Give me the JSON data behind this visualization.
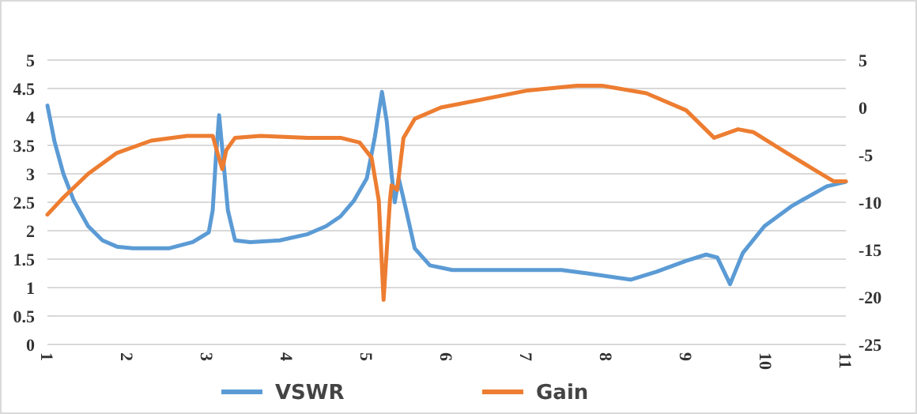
{
  "chart_data": {
    "type": "line",
    "xlim": [
      1,
      11
    ],
    "xticks": [
      1,
      2,
      3,
      4,
      5,
      6,
      7,
      8,
      9,
      10,
      11
    ],
    "ylim": [
      0,
      5
    ],
    "yticks": [
      0,
      0.5,
      1,
      1.5,
      2,
      2.5,
      3,
      3.5,
      4,
      4.5,
      5
    ],
    "y2lim": [
      -25,
      5
    ],
    "y2ticks": [
      -25,
      -20,
      -15,
      -10,
      -5,
      0,
      5
    ],
    "grid": "y",
    "legend": "bottom",
    "marker": "none",
    "line_style": "solid",
    "series": [
      {
        "name": "VSWR",
        "color": "#5b9bd5",
        "x": [
          1,
          1.09,
          1.2,
          1.33,
          1.51,
          1.69,
          1.87,
          2.07,
          2.52,
          2.82,
          3.02,
          3.07,
          3.11,
          3.15,
          3.2,
          3.26,
          3.35,
          3.54,
          3.91,
          4.26,
          4.49,
          4.67,
          4.84,
          5,
          5.1,
          5.19,
          5.25,
          5.31,
          5.35,
          5.4,
          5.48,
          5.6,
          5.79,
          6.07,
          6.58,
          7.44,
          7.76,
          8.31,
          8.63,
          9,
          9.25,
          9.39,
          9.55,
          9.71,
          9.98,
          10.33,
          10.76,
          11
        ],
        "values": [
          4.2,
          3.56,
          3,
          2.53,
          2.08,
          1.83,
          1.72,
          1.69,
          1.69,
          1.8,
          1.97,
          2.36,
          3.28,
          4.03,
          3.28,
          2.36,
          1.83,
          1.8,
          1.83,
          1.94,
          2.08,
          2.25,
          2.53,
          2.92,
          3.64,
          4.44,
          3.92,
          3,
          2.5,
          2.92,
          2.44,
          1.69,
          1.39,
          1.31,
          1.31,
          1.31,
          1.25,
          1.14,
          1.28,
          1.47,
          1.58,
          1.53,
          1.06,
          1.61,
          2.08,
          2.44,
          2.78,
          2.86
        ]
      },
      {
        "name": "Gain",
        "color": "#ed7d31",
        "axis": "y2",
        "x": [
          1,
          1.2,
          1.51,
          1.87,
          2.3,
          2.75,
          3.07,
          3.13,
          3.19,
          3.24,
          3.35,
          3.67,
          4.26,
          4.67,
          4.91,
          5.06,
          5.15,
          5.21,
          5.29,
          5.31,
          5.38,
          5.46,
          5.6,
          5.93,
          6.42,
          7.02,
          7.63,
          7.94,
          8.5,
          9,
          9.35,
          9.65,
          9.84,
          10.26,
          10.63,
          10.85,
          11
        ],
        "values": [
          -11.3,
          -9.5,
          -7,
          -4.8,
          -3.5,
          -3,
          -3,
          -4.8,
          -6.5,
          -4.5,
          -3.2,
          -3,
          -3.2,
          -3.2,
          -3.7,
          -5.3,
          -9.8,
          -20.3,
          -9.8,
          -8.2,
          -8.7,
          -3.2,
          -1.2,
          0,
          0.8,
          1.8,
          2.3,
          2.3,
          1.5,
          -0.3,
          -3.2,
          -2.3,
          -2.6,
          -4.8,
          -6.7,
          -7.8,
          -7.8
        ]
      }
    ]
  }
}
